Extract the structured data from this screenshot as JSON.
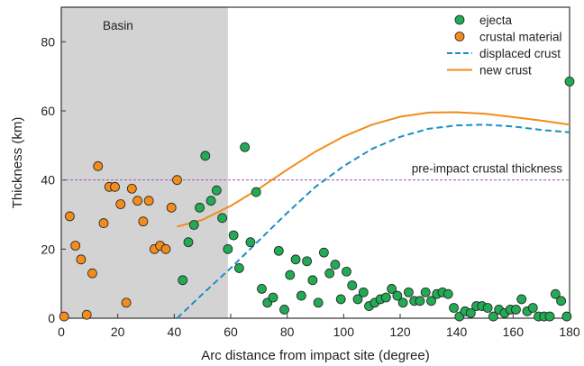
{
  "chart_data": {
    "type": "scatter",
    "title": "",
    "xlabel": "Arc distance from impact site (degree)",
    "ylabel": "Thickness (km)",
    "xlim": [
      0,
      180
    ],
    "ylim": [
      0,
      90
    ],
    "xticks": [
      0,
      20,
      40,
      60,
      80,
      100,
      120,
      140,
      160,
      180
    ],
    "yticks": [
      0,
      20,
      40,
      60,
      80
    ],
    "grid": false,
    "legend_position": "top-right",
    "shaded_region": {
      "label": "Basin",
      "x_range": [
        0,
        59
      ],
      "color": "#d3d3d3"
    },
    "reference_line": {
      "label": "pre-impact crustal thickness",
      "y": 40,
      "color": "#9b59b6"
    },
    "series": [
      {
        "name": "ejecta",
        "kind": "scatter",
        "color": "#22aa55",
        "points": [
          [
            43,
            11
          ],
          [
            45,
            22
          ],
          [
            47,
            27
          ],
          [
            49,
            32
          ],
          [
            51,
            47
          ],
          [
            53,
            34
          ],
          [
            55,
            37
          ],
          [
            57,
            29
          ],
          [
            59,
            20
          ],
          [
            61,
            24
          ],
          [
            63,
            14.5
          ],
          [
            65,
            49.5
          ],
          [
            67,
            22
          ],
          [
            69,
            36.5
          ],
          [
            71,
            8.5
          ],
          [
            73,
            4.5
          ],
          [
            75,
            6
          ],
          [
            77,
            19.5
          ],
          [
            79,
            2.5
          ],
          [
            81,
            12.5
          ],
          [
            83,
            17
          ],
          [
            85,
            6.5
          ],
          [
            87,
            16.5
          ],
          [
            89,
            11
          ],
          [
            91,
            4.5
          ],
          [
            93,
            19
          ],
          [
            95,
            13
          ],
          [
            97,
            15.5
          ],
          [
            99,
            5.5
          ],
          [
            101,
            13.5
          ],
          [
            103,
            9.5
          ],
          [
            105,
            5.5
          ],
          [
            107,
            7.5
          ],
          [
            109,
            3.5
          ],
          [
            111,
            4.5
          ],
          [
            113,
            5.5
          ],
          [
            115,
            6
          ],
          [
            117,
            8.5
          ],
          [
            119,
            6.5
          ],
          [
            121,
            4.5
          ],
          [
            123,
            7.5
          ],
          [
            125,
            5
          ],
          [
            127,
            5
          ],
          [
            129,
            7.5
          ],
          [
            131,
            5
          ],
          [
            133,
            7
          ],
          [
            135,
            7.5
          ],
          [
            137,
            7
          ],
          [
            139,
            3
          ],
          [
            141,
            0.5
          ],
          [
            143,
            2
          ],
          [
            145,
            1.5
          ],
          [
            147,
            3.5
          ],
          [
            149,
            3.5
          ],
          [
            151,
            3
          ],
          [
            153,
            0.5
          ],
          [
            155,
            2.5
          ],
          [
            157,
            1.5
          ],
          [
            159,
            2.5
          ],
          [
            161,
            2.5
          ],
          [
            163,
            5.5
          ],
          [
            165,
            2
          ],
          [
            167,
            3
          ],
          [
            169,
            0.5
          ],
          [
            171,
            0.5
          ],
          [
            173,
            0.5
          ],
          [
            175,
            7
          ],
          [
            177,
            5
          ],
          [
            179,
            0.5
          ],
          [
            180,
            68.5
          ]
        ]
      },
      {
        "name": "crustal material",
        "kind": "scatter",
        "color": "#f28c1c",
        "points": [
          [
            1,
            0.5
          ],
          [
            3,
            29.5
          ],
          [
            5,
            21
          ],
          [
            7,
            17
          ],
          [
            9,
            1
          ],
          [
            11,
            13
          ],
          [
            13,
            44
          ],
          [
            15,
            27.5
          ],
          [
            17,
            38
          ],
          [
            19,
            38
          ],
          [
            21,
            33
          ],
          [
            23,
            4.5
          ],
          [
            25,
            37.5
          ],
          [
            27,
            34
          ],
          [
            29,
            28
          ],
          [
            31,
            34
          ],
          [
            33,
            20
          ],
          [
            35,
            21
          ],
          [
            37,
            20
          ],
          [
            39,
            32
          ],
          [
            41,
            40
          ]
        ]
      },
      {
        "name": "displaced crust",
        "kind": "line",
        "style": "dashed",
        "color": "#1a8fc4",
        "points": [
          [
            41,
            0
          ],
          [
            50,
            7
          ],
          [
            60,
            14.5
          ],
          [
            70,
            22.5
          ],
          [
            80,
            30.5
          ],
          [
            90,
            38
          ],
          [
            100,
            44
          ],
          [
            110,
            49
          ],
          [
            120,
            52.5
          ],
          [
            130,
            54.8
          ],
          [
            140,
            55.8
          ],
          [
            150,
            56
          ],
          [
            160,
            55.5
          ],
          [
            170,
            54.5
          ],
          [
            180,
            53.8
          ]
        ]
      },
      {
        "name": "new crust",
        "kind": "line",
        "style": "solid",
        "color": "#f28c1c",
        "points": [
          [
            41,
            26.5
          ],
          [
            50,
            28.5
          ],
          [
            60,
            32.5
          ],
          [
            70,
            37.5
          ],
          [
            80,
            43
          ],
          [
            90,
            48.2
          ],
          [
            100,
            52.6
          ],
          [
            110,
            56
          ],
          [
            120,
            58.3
          ],
          [
            130,
            59.5
          ],
          [
            140,
            59.6
          ],
          [
            150,
            59.2
          ],
          [
            160,
            58.2
          ],
          [
            170,
            57.2
          ],
          [
            180,
            56
          ]
        ]
      }
    ]
  }
}
